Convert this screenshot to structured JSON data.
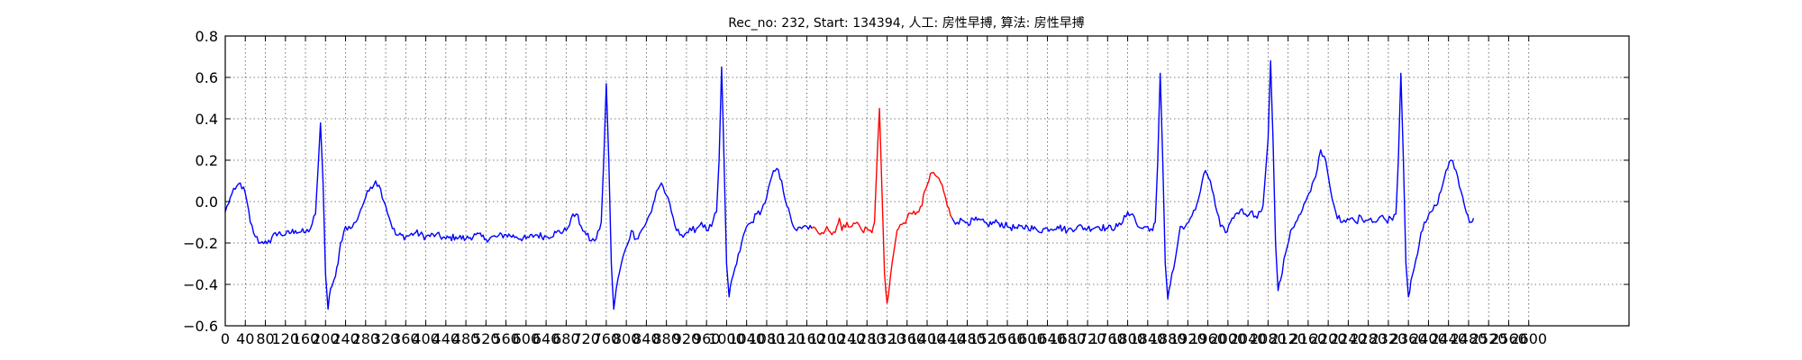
{
  "chart_data": {
    "type": "line",
    "title": "Rec_no: 232, Start: 134394, 人工: 房性早搏, 算法: 房性早搏",
    "xlim": [
      0,
      2800
    ],
    "ylim": [
      -0.6,
      0.8
    ],
    "grid": true,
    "grid_style": "dotted",
    "yticks": [
      "0.8",
      "0.6",
      "0.4",
      "0.2",
      "0.0",
      "−0.2",
      "−0.4",
      "−0.6"
    ],
    "ytick_values": [
      0.8,
      0.6,
      0.4,
      0.2,
      0.0,
      -0.2,
      -0.4,
      -0.6
    ],
    "xtick_values": [
      0,
      40,
      80,
      120,
      160,
      200,
      240,
      280,
      320,
      360,
      400,
      440,
      480,
      520,
      560,
      600,
      640,
      680,
      720,
      760,
      800,
      840,
      880,
      920,
      960,
      1000,
      1040,
      1080,
      1120,
      1160,
      1200,
      1240,
      1280,
      1320,
      1360,
      1400,
      1440,
      1480,
      1520,
      1560,
      1600,
      1640,
      1680,
      1720,
      1760,
      1800,
      1840,
      1880,
      1920,
      1960,
      2000,
      2040,
      2080,
      2120,
      2160,
      2200,
      2240,
      2280,
      2320,
      2360,
      2400,
      2440,
      2480,
      2520,
      2560,
      2600
    ],
    "xtick_labels": [
      "0",
      "40",
      "80",
      "120",
      "160",
      "200",
      "240",
      "280",
      "320",
      "360",
      "400",
      "440",
      "480",
      "520",
      "560",
      "600",
      "640",
      "680",
      "720",
      "760",
      "800",
      "840",
      "880",
      "920",
      "960",
      "1000",
      "1040",
      "1080",
      "1120",
      "1160",
      "1200",
      "1240",
      "1280",
      "1320",
      "1360",
      "1400",
      "1440",
      "1480",
      "1520",
      "1560",
      "1600",
      "1640",
      "1680",
      "1720",
      "1760",
      "1800",
      "1840",
      "1880",
      "1920",
      "1960",
      "2000",
      "2040",
      "2080",
      "2120",
      "2160",
      "2200",
      "2240",
      "2280",
      "2320",
      "2360",
      "2400",
      "2440",
      "2480",
      "2520",
      "2560",
      "2600"
    ],
    "series": [
      {
        "color": "#0000ff",
        "points": [
          [
            0,
            -0.05
          ],
          [
            10,
            0.02
          ],
          [
            20,
            0.06
          ],
          [
            30,
            0.09
          ],
          [
            40,
            0.04
          ],
          [
            50,
            -0.1
          ],
          [
            60,
            -0.17
          ],
          [
            70,
            -0.2
          ],
          [
            80,
            -0.19
          ],
          [
            90,
            -0.2
          ],
          [
            100,
            -0.15
          ],
          [
            120,
            -0.16
          ],
          [
            140,
            -0.14
          ],
          [
            160,
            -0.15
          ],
          [
            170,
            -0.13
          ],
          [
            180,
            -0.06
          ],
          [
            185,
            0.15
          ],
          [
            190,
            0.38
          ],
          [
            195,
            0.1
          ],
          [
            200,
            -0.35
          ],
          [
            205,
            -0.52
          ],
          [
            210,
            -0.42
          ],
          [
            220,
            -0.36
          ],
          [
            225,
            -0.3
          ],
          [
            230,
            -0.2
          ],
          [
            240,
            -0.12
          ],
          [
            250,
            -0.13
          ],
          [
            260,
            -0.1
          ],
          [
            270,
            -0.04
          ],
          [
            280,
            0.02
          ],
          [
            290,
            0.07
          ],
          [
            300,
            0.1
          ],
          [
            310,
            0.06
          ],
          [
            320,
            -0.02
          ],
          [
            330,
            -0.1
          ],
          [
            340,
            -0.16
          ],
          [
            360,
            -0.17
          ],
          [
            380,
            -0.15
          ],
          [
            400,
            -0.17
          ],
          [
            420,
            -0.16
          ],
          [
            440,
            -0.18
          ],
          [
            460,
            -0.17
          ],
          [
            480,
            -0.18
          ],
          [
            500,
            -0.16
          ],
          [
            520,
            -0.18
          ],
          [
            540,
            -0.17
          ],
          [
            560,
            -0.16
          ],
          [
            580,
            -0.17
          ],
          [
            600,
            -0.18
          ],
          [
            620,
            -0.16
          ],
          [
            640,
            -0.17
          ],
          [
            660,
            -0.15
          ],
          [
            680,
            -0.14
          ],
          [
            690,
            -0.08
          ],
          [
            700,
            -0.06
          ],
          [
            710,
            -0.12
          ],
          [
            720,
            -0.16
          ],
          [
            730,
            -0.19
          ],
          [
            740,
            -0.18
          ],
          [
            750,
            -0.1
          ],
          [
            755,
            0.2
          ],
          [
            760,
            0.57
          ],
          [
            765,
            0.2
          ],
          [
            770,
            -0.3
          ],
          [
            775,
            -0.52
          ],
          [
            780,
            -0.42
          ],
          [
            790,
            -0.3
          ],
          [
            800,
            -0.22
          ],
          [
            810,
            -0.14
          ],
          [
            820,
            -0.18
          ],
          [
            830,
            -0.14
          ],
          [
            840,
            -0.1
          ],
          [
            850,
            -0.05
          ],
          [
            860,
            0.05
          ],
          [
            870,
            0.09
          ],
          [
            880,
            0.03
          ],
          [
            890,
            -0.05
          ],
          [
            900,
            -0.14
          ],
          [
            910,
            -0.16
          ],
          [
            920,
            -0.15
          ],
          [
            930,
            -0.14
          ],
          [
            940,
            -0.13
          ],
          [
            950,
            -0.1
          ],
          [
            960,
            -0.14
          ],
          [
            970,
            -0.12
          ],
          [
            980,
            -0.05
          ],
          [
            985,
            0.2
          ],
          [
            990,
            0.65
          ],
          [
            995,
            0.2
          ],
          [
            1000,
            -0.3
          ],
          [
            1005,
            -0.46
          ],
          [
            1010,
            -0.38
          ],
          [
            1020,
            -0.3
          ],
          [
            1030,
            -0.2
          ],
          [
            1040,
            -0.12
          ],
          [
            1050,
            -0.1
          ],
          [
            1060,
            -0.06
          ],
          [
            1070,
            -0.04
          ],
          [
            1080,
            0.02
          ],
          [
            1090,
            0.12
          ],
          [
            1100,
            0.16
          ],
          [
            1110,
            0.1
          ],
          [
            1120,
            -0.02
          ],
          [
            1130,
            -0.1
          ],
          [
            1140,
            -0.14
          ],
          [
            1150,
            -0.13
          ],
          [
            1160,
            -0.12
          ],
          [
            1170,
            -0.13
          ]
        ]
      },
      {
        "color": "#ff0000",
        "points": [
          [
            1170,
            -0.13
          ],
          [
            1180,
            -0.14
          ],
          [
            1190,
            -0.15
          ],
          [
            1200,
            -0.12
          ],
          [
            1210,
            -0.16
          ],
          [
            1220,
            -0.12
          ],
          [
            1225,
            -0.08
          ],
          [
            1230,
            -0.14
          ],
          [
            1240,
            -0.1
          ],
          [
            1250,
            -0.12
          ],
          [
            1260,
            -0.1
          ],
          [
            1270,
            -0.14
          ],
          [
            1280,
            -0.13
          ],
          [
            1290,
            -0.15
          ],
          [
            1295,
            -0.1
          ],
          [
            1300,
            0.2
          ],
          [
            1305,
            0.45
          ],
          [
            1310,
            0.05
          ],
          [
            1315,
            -0.35
          ],
          [
            1320,
            -0.49
          ],
          [
            1325,
            -0.4
          ],
          [
            1330,
            -0.3
          ],
          [
            1340,
            -0.14
          ],
          [
            1350,
            -0.11
          ],
          [
            1360,
            -0.08
          ],
          [
            1370,
            -0.06
          ],
          [
            1380,
            -0.05
          ],
          [
            1390,
            -0.02
          ],
          [
            1395,
            0.05
          ],
          [
            1400,
            0.08
          ],
          [
            1410,
            0.14
          ],
          [
            1420,
            0.12
          ],
          [
            1430,
            0.08
          ],
          [
            1440,
            -0.02
          ],
          [
            1450,
            -0.08
          ]
        ]
      },
      {
        "color": "#0000ff",
        "points": [
          [
            1450,
            -0.08
          ],
          [
            1460,
            -0.1
          ],
          [
            1470,
            -0.09
          ],
          [
            1480,
            -0.1
          ],
          [
            1500,
            -0.09
          ],
          [
            1520,
            -0.11
          ],
          [
            1540,
            -0.1
          ],
          [
            1560,
            -0.12
          ],
          [
            1580,
            -0.13
          ],
          [
            1600,
            -0.12
          ],
          [
            1620,
            -0.14
          ],
          [
            1640,
            -0.13
          ],
          [
            1660,
            -0.12
          ],
          [
            1680,
            -0.14
          ],
          [
            1700,
            -0.12
          ],
          [
            1720,
            -0.13
          ],
          [
            1740,
            -0.12
          ],
          [
            1760,
            -0.13
          ],
          [
            1780,
            -0.12
          ],
          [
            1790,
            -0.1
          ],
          [
            1800,
            -0.05
          ],
          [
            1810,
            -0.06
          ],
          [
            1820,
            -0.12
          ],
          [
            1830,
            -0.13
          ],
          [
            1840,
            -0.12
          ],
          [
            1850,
            -0.14
          ],
          [
            1855,
            -0.1
          ],
          [
            1860,
            0.2
          ],
          [
            1865,
            0.62
          ],
          [
            1870,
            0.2
          ],
          [
            1875,
            -0.3
          ],
          [
            1880,
            -0.47
          ],
          [
            1885,
            -0.4
          ],
          [
            1895,
            -0.28
          ],
          [
            1905,
            -0.12
          ],
          [
            1915,
            -0.12
          ],
          [
            1925,
            -0.08
          ],
          [
            1935,
            -0.04
          ],
          [
            1945,
            0.05
          ],
          [
            1955,
            0.15
          ],
          [
            1965,
            0.1
          ],
          [
            1975,
            -0.02
          ],
          [
            1985,
            -0.12
          ],
          [
            1995,
            -0.15
          ],
          [
            2005,
            -0.1
          ],
          [
            2015,
            -0.06
          ],
          [
            2025,
            -0.04
          ],
          [
            2035,
            -0.06
          ],
          [
            2045,
            -0.05
          ],
          [
            2055,
            -0.07
          ],
          [
            2065,
            -0.05
          ],
          [
            2070,
            -0.02
          ],
          [
            2080,
            0.3
          ],
          [
            2085,
            0.68
          ],
          [
            2090,
            0.3
          ],
          [
            2095,
            -0.2
          ],
          [
            2100,
            -0.43
          ],
          [
            2105,
            -0.38
          ],
          [
            2115,
            -0.25
          ],
          [
            2125,
            -0.14
          ],
          [
            2135,
            -0.1
          ],
          [
            2145,
            -0.06
          ],
          [
            2155,
            0.0
          ],
          [
            2165,
            0.05
          ],
          [
            2175,
            0.12
          ],
          [
            2185,
            0.25
          ],
          [
            2195,
            0.2
          ],
          [
            2205,
            0.05
          ],
          [
            2215,
            -0.05
          ],
          [
            2225,
            -0.1
          ],
          [
            2235,
            -0.1
          ],
          [
            2245,
            -0.08
          ],
          [
            2255,
            -0.1
          ],
          [
            2265,
            -0.07
          ],
          [
            2275,
            -0.09
          ],
          [
            2285,
            -0.08
          ],
          [
            2295,
            -0.1
          ],
          [
            2305,
            -0.07
          ],
          [
            2315,
            -0.09
          ],
          [
            2325,
            -0.08
          ],
          [
            2335,
            -0.06
          ],
          [
            2340,
            0.2
          ],
          [
            2345,
            0.62
          ],
          [
            2350,
            0.2
          ],
          [
            2355,
            -0.3
          ],
          [
            2360,
            -0.46
          ],
          [
            2365,
            -0.38
          ],
          [
            2375,
            -0.28
          ],
          [
            2385,
            -0.15
          ],
          [
            2395,
            -0.1
          ],
          [
            2405,
            -0.05
          ],
          [
            2415,
            -0.02
          ],
          [
            2425,
            0.05
          ],
          [
            2435,
            0.15
          ],
          [
            2445,
            0.2
          ],
          [
            2455,
            0.15
          ],
          [
            2465,
            0.05
          ],
          [
            2475,
            -0.05
          ],
          [
            2485,
            -0.1
          ],
          [
            2490,
            -0.08
          ]
        ]
      }
    ]
  }
}
